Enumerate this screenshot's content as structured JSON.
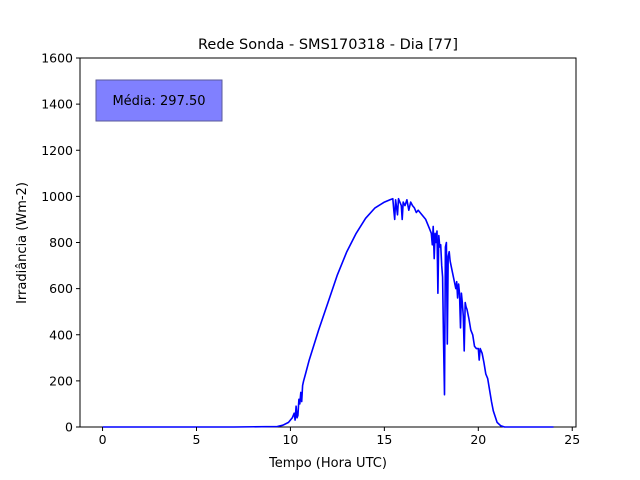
{
  "chart_data": {
    "type": "line",
    "title": "Rede Sonda - SMS170318 - Dia [77]",
    "xlabel": "Tempo (Hora UTC)",
    "ylabel": "Irradiância (Wm-2)",
    "xlim": [
      -1.2,
      25.2
    ],
    "ylim": [
      0,
      1600
    ],
    "xticks": [
      0,
      5,
      10,
      15,
      20,
      25
    ],
    "yticks": [
      0,
      200,
      400,
      600,
      800,
      1000,
      1200,
      1400,
      1600
    ],
    "grid": false,
    "annotation": {
      "text": "Média: 297.50",
      "box_color": "#8080ff"
    },
    "series": [
      {
        "color": "#0000ff",
        "x": [
          0,
          7,
          9.3,
          9.6,
          9.9,
          10.1,
          10.2,
          10.25,
          10.3,
          10.35,
          10.4,
          10.45,
          10.5,
          10.55,
          10.6,
          10.65,
          10.7,
          10.8,
          11.0,
          11.5,
          12.0,
          12.5,
          13.0,
          13.5,
          14.0,
          14.5,
          15.0,
          15.3,
          15.45,
          15.5,
          15.55,
          15.6,
          15.7,
          15.75,
          15.8,
          15.9,
          15.95,
          16.0,
          16.1,
          16.2,
          16.3,
          16.4,
          16.5,
          16.6,
          16.7,
          16.8,
          17.0,
          17.2,
          17.4,
          17.5,
          17.55,
          17.6,
          17.65,
          17.7,
          17.75,
          17.8,
          17.85,
          17.9,
          17.95,
          18.0,
          18.05,
          18.1,
          18.15,
          18.2,
          18.25,
          18.3,
          18.35,
          18.4,
          18.45,
          18.5,
          18.6,
          18.7,
          18.8,
          18.85,
          18.9,
          18.95,
          19.0,
          19.05,
          19.1,
          19.15,
          19.2,
          19.25,
          19.3,
          19.35,
          19.4,
          19.5,
          19.6,
          19.7,
          19.8,
          19.9,
          20.0,
          20.05,
          20.1,
          20.2,
          20.3,
          20.4,
          20.5,
          20.6,
          20.7,
          20.8,
          21.0,
          21.2,
          21.4,
          21.6,
          21.7,
          21.8,
          22.0,
          24.0
        ],
        "y": [
          0,
          0,
          2,
          8,
          20,
          40,
          60,
          30,
          90,
          40,
          50,
          120,
          100,
          150,
          110,
          180,
          200,
          230,
          290,
          420,
          540,
          660,
          760,
          840,
          905,
          950,
          975,
          985,
          990,
          940,
          900,
          985,
          920,
          990,
          980,
          960,
          900,
          975,
          960,
          985,
          940,
          975,
          960,
          950,
          930,
          940,
          920,
          900,
          860,
          840,
          790,
          870,
          730,
          840,
          800,
          850,
          580,
          830,
          780,
          790,
          700,
          650,
          380,
          140,
          780,
          800,
          360,
          740,
          760,
          720,
          680,
          640,
          600,
          630,
          560,
          620,
          580,
          430,
          580,
          540,
          480,
          330,
          540,
          520,
          510,
          470,
          420,
          400,
          350,
          340,
          340,
          290,
          340,
          320,
          280,
          230,
          210,
          160,
          110,
          70,
          20,
          5,
          0,
          0,
          0,
          0,
          0,
          0
        ]
      }
    ]
  }
}
